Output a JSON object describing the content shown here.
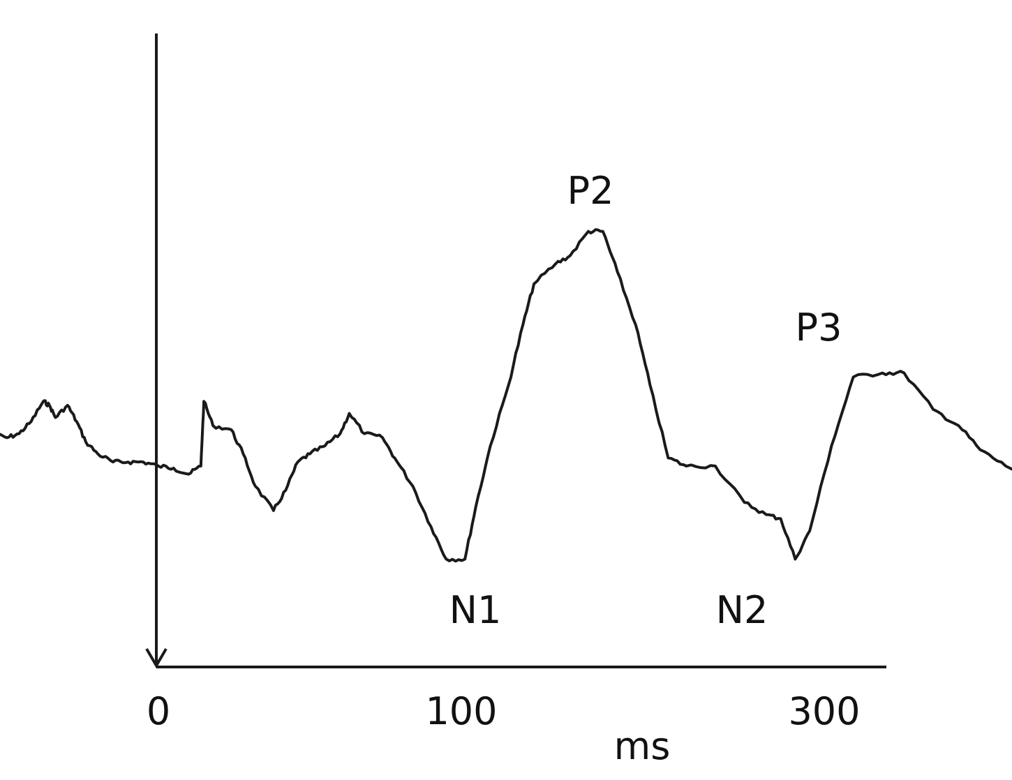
{
  "chart_data": {
    "type": "line",
    "title": "",
    "xlabel": "ms",
    "ylabel": "",
    "x_ticks": [
      {
        "value": 0,
        "label": "0"
      },
      {
        "value": 100,
        "label": "100"
      },
      {
        "value": 300,
        "label": "300"
      }
    ],
    "grid": false,
    "series": [
      {
        "color": "#1a1a1a",
        "points": [
          [
            -55,
            0.8
          ],
          [
            -50,
            0.7
          ],
          [
            -46,
            0.8
          ],
          [
            -42,
            1.1
          ],
          [
            -38,
            1.6
          ],
          [
            -36,
            1.5
          ],
          [
            -34,
            1.2
          ],
          [
            -30,
            1.5
          ],
          [
            -27,
            1.1
          ],
          [
            -24,
            0.6
          ],
          [
            -20,
            0.3
          ],
          [
            -15,
            0.1
          ],
          [
            -10,
            0.1
          ],
          [
            -5,
            0.1
          ],
          [
            0,
            0.0
          ],
          [
            5,
            -0.05
          ],
          [
            10,
            -0.2
          ],
          [
            14,
            0.0
          ],
          [
            15,
            1.6
          ],
          [
            18,
            1.0
          ],
          [
            24,
            0.9
          ],
          [
            28,
            0.3
          ],
          [
            32,
            -0.5
          ],
          [
            38,
            -1.1
          ],
          [
            42,
            -0.6
          ],
          [
            46,
            0.1
          ],
          [
            50,
            0.3
          ],
          [
            55,
            0.5
          ],
          [
            60,
            0.8
          ],
          [
            63,
            1.3
          ],
          [
            68,
            0.8
          ],
          [
            74,
            0.7
          ],
          [
            78,
            0.2
          ],
          [
            84,
            -0.5
          ],
          [
            90,
            -1.5
          ],
          [
            95,
            -2.3
          ],
          [
            101,
            -2.3
          ],
          [
            104,
            -1.0
          ],
          [
            108,
            0.5
          ],
          [
            113,
            2.0
          ],
          [
            117,
            3.5
          ],
          [
            120,
            4.5
          ],
          [
            126,
            5.0
          ],
          [
            130,
            5.2
          ],
          [
            135,
            5.8
          ],
          [
            139,
            5.8
          ],
          [
            143,
            4.8
          ],
          [
            148,
            3.5
          ],
          [
            152,
            2.0
          ],
          [
            157,
            0.2
          ],
          [
            162,
            0.0
          ],
          [
            170,
            0.0
          ],
          [
            178,
            -0.9
          ],
          [
            184,
            -1.2
          ],
          [
            188,
            -1.3
          ],
          [
            192,
            -2.3
          ],
          [
            196,
            -1.6
          ],
          [
            202,
            0.5
          ],
          [
            208,
            2.2
          ],
          [
            216,
            2.3
          ],
          [
            222,
            2.3
          ],
          [
            230,
            1.4
          ],
          [
            237,
            1.0
          ],
          [
            243,
            0.4
          ],
          [
            250,
            0.0
          ],
          [
            260,
            -0.4
          ],
          [
            266,
            -0.9
          ],
          [
            271,
            -2.0
          ],
          [
            276,
            -2.6
          ]
        ]
      }
    ],
    "annotations": [
      {
        "label": "P2",
        "x": 135,
        "y": 5.8
      },
      {
        "label": "P3",
        "x": 214,
        "y": 2.3
      },
      {
        "label": "N1",
        "x": 99,
        "y": -2.3
      },
      {
        "label": "N2",
        "x": 193,
        "y": -2.3
      }
    ]
  }
}
